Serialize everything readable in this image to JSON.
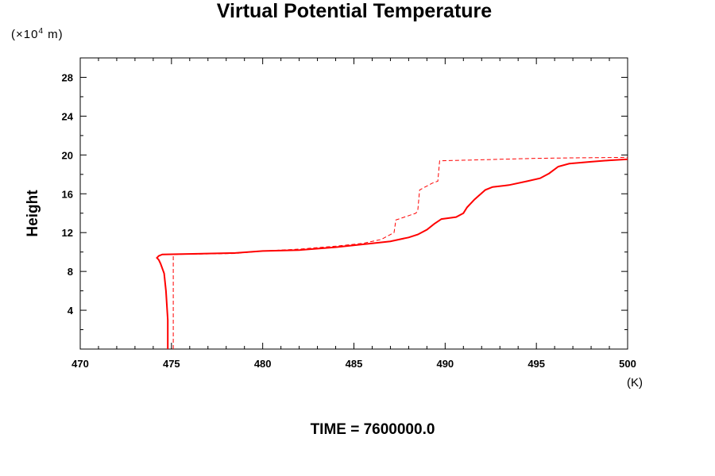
{
  "chart_data": {
    "type": "line",
    "title": "Virtual Potential Temperature",
    "y_unit_prefix": "(×10",
    "y_unit_exp": "4",
    "y_unit_suffix": " m)",
    "ylabel": "Height",
    "x_unit": "(K)",
    "footer": "TIME = 7600000.0",
    "xlim": [
      470,
      500
    ],
    "ylim": [
      0,
      30
    ],
    "x_ticks": [
      470,
      475,
      480,
      485,
      490,
      495,
      500
    ],
    "y_ticks": [
      4,
      8,
      12,
      16,
      20,
      24,
      28
    ],
    "grid": false,
    "series": [
      {
        "style": "solid",
        "color": "#ff0000",
        "points": [
          [
            474.8,
            0
          ],
          [
            474.8,
            3
          ],
          [
            474.7,
            6
          ],
          [
            474.6,
            7.8
          ],
          [
            474.4,
            8.8
          ],
          [
            474.3,
            9.2
          ],
          [
            474.2,
            9.4
          ],
          [
            474.3,
            9.6
          ],
          [
            474.5,
            9.75
          ],
          [
            478.5,
            9.9
          ],
          [
            480,
            10.1
          ],
          [
            482,
            10.2
          ],
          [
            484,
            10.5
          ],
          [
            486,
            10.9
          ],
          [
            487,
            11.1
          ],
          [
            488,
            11.5
          ],
          [
            488.5,
            11.8
          ],
          [
            489,
            12.3
          ],
          [
            489.4,
            12.9
          ],
          [
            489.8,
            13.4
          ],
          [
            490.2,
            13.5
          ],
          [
            490.6,
            13.6
          ],
          [
            491,
            14.0
          ],
          [
            491.2,
            14.6
          ],
          [
            491.6,
            15.4
          ],
          [
            492.2,
            16.4
          ],
          [
            492.6,
            16.7
          ],
          [
            493.5,
            16.9
          ],
          [
            494.5,
            17.3
          ],
          [
            495.2,
            17.6
          ],
          [
            495.7,
            18.1
          ],
          [
            496.2,
            18.8
          ],
          [
            496.8,
            19.1
          ],
          [
            498,
            19.3
          ],
          [
            499,
            19.45
          ],
          [
            500,
            19.55
          ]
        ]
      },
      {
        "style": "dashed",
        "color": "#ff0000",
        "points": [
          [
            475.1,
            0
          ],
          [
            475.1,
            9.75
          ],
          [
            478.5,
            9.85
          ],
          [
            480,
            10.1
          ],
          [
            482,
            10.3
          ],
          [
            484,
            10.6
          ],
          [
            485.5,
            10.9
          ],
          [
            486.5,
            11.3
          ],
          [
            487.2,
            12.0
          ],
          [
            487.3,
            13.3
          ],
          [
            488.4,
            14.0
          ],
          [
            488.5,
            14.3
          ],
          [
            488.6,
            16.4
          ],
          [
            489.3,
            17.1
          ],
          [
            489.6,
            17.3
          ],
          [
            489.7,
            19.4
          ],
          [
            492,
            19.5
          ],
          [
            495,
            19.65
          ],
          [
            497,
            19.7
          ],
          [
            500,
            19.75
          ]
        ]
      }
    ]
  }
}
